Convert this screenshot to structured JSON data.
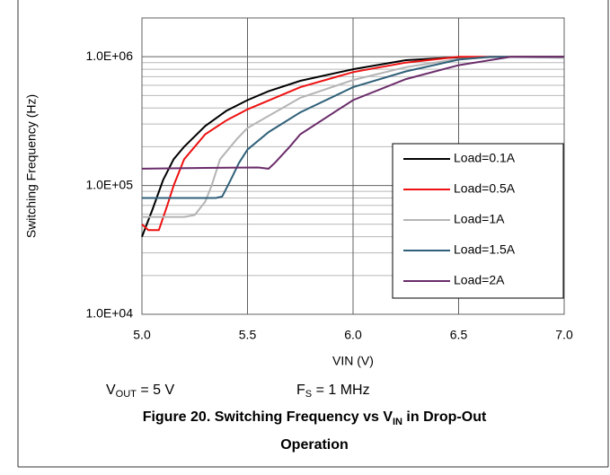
{
  "chart_data": {
    "type": "line",
    "y_label": "Switching Frequency (Hz)",
    "x_label": "VIN (V)",
    "log_y": true,
    "grid": true,
    "minor_grid": true,
    "legend": "right",
    "xlim": [
      5,
      7
    ],
    "xticks": [
      {
        "value": 5,
        "label": "5.0"
      },
      5.5,
      {
        "value": 6,
        "label": "6.0"
      },
      6.5,
      {
        "value": 7,
        "label": "7.0"
      }
    ],
    "ylim": [
      10000,
      2000000
    ],
    "yticks": [
      {
        "value": 10000,
        "label": "1.0E+04"
      },
      {
        "value": 100000,
        "label": "1.0E+05"
      },
      {
        "value": 1000000,
        "label": "1.0E+06"
      }
    ],
    "series": [
      {
        "name": "Load=0.1A",
        "color": "#000000",
        "x": [
          5.0,
          5.05,
          5.1,
          5.15,
          5.2,
          5.3,
          5.4,
          5.5,
          5.6,
          5.75,
          6.0,
          6.25,
          6.5,
          7.0
        ],
        "values": [
          40000,
          65000,
          110000,
          160000,
          200000,
          290000,
          380000,
          460000,
          540000,
          650000,
          800000,
          940000,
          990000,
          1000000
        ]
      },
      {
        "name": "Load=0.5A",
        "color": "#ee1111",
        "x": [
          5.0,
          5.03,
          5.08,
          5.12,
          5.15,
          5.2,
          5.3,
          5.4,
          5.5,
          5.75,
          6.0,
          6.25,
          6.5,
          7.0
        ],
        "values": [
          50000,
          45000,
          45000,
          70000,
          100000,
          160000,
          250000,
          320000,
          390000,
          580000,
          760000,
          900000,
          1000000,
          1000000
        ]
      },
      {
        "name": "Load=1A",
        "color": "#b4b4b4",
        "x": [
          5.0,
          5.2,
          5.25,
          5.3,
          5.33,
          5.37,
          5.45,
          5.5,
          5.75,
          6.0,
          6.25,
          6.5,
          6.7,
          7.0
        ],
        "values": [
          57000,
          57000,
          59000,
          75000,
          100000,
          160000,
          230000,
          280000,
          480000,
          660000,
          830000,
          960000,
          1000000,
          980000
        ]
      },
      {
        "name": "Load=1.5A",
        "color": "#2f6079",
        "x": [
          5.0,
          5.35,
          5.38,
          5.42,
          5.46,
          5.5,
          5.6,
          5.75,
          6.0,
          6.25,
          6.5,
          6.65,
          7.0
        ],
        "values": [
          80000,
          80000,
          82000,
          110000,
          150000,
          190000,
          260000,
          370000,
          580000,
          770000,
          950000,
          1000000,
          1000000
        ]
      },
      {
        "name": "Load=2A",
        "color": "#6a2c6a",
        "x": [
          5.0,
          5.3,
          5.55,
          5.6,
          5.63,
          5.7,
          5.75,
          6.0,
          6.25,
          6.5,
          6.75,
          7.0
        ],
        "values": [
          135000,
          137000,
          138000,
          135000,
          150000,
          200000,
          250000,
          460000,
          670000,
          860000,
          1000000,
          1000000
        ]
      }
    ],
    "annotations": [
      [
        "V",
        "OUT",
        " = 5 V"
      ],
      [
        "F",
        "S",
        " = 1 MHz"
      ]
    ],
    "caption": [
      "Figure 20. Switching Frequency vs V",
      "IN",
      " in Drop-Out Operation"
    ]
  }
}
